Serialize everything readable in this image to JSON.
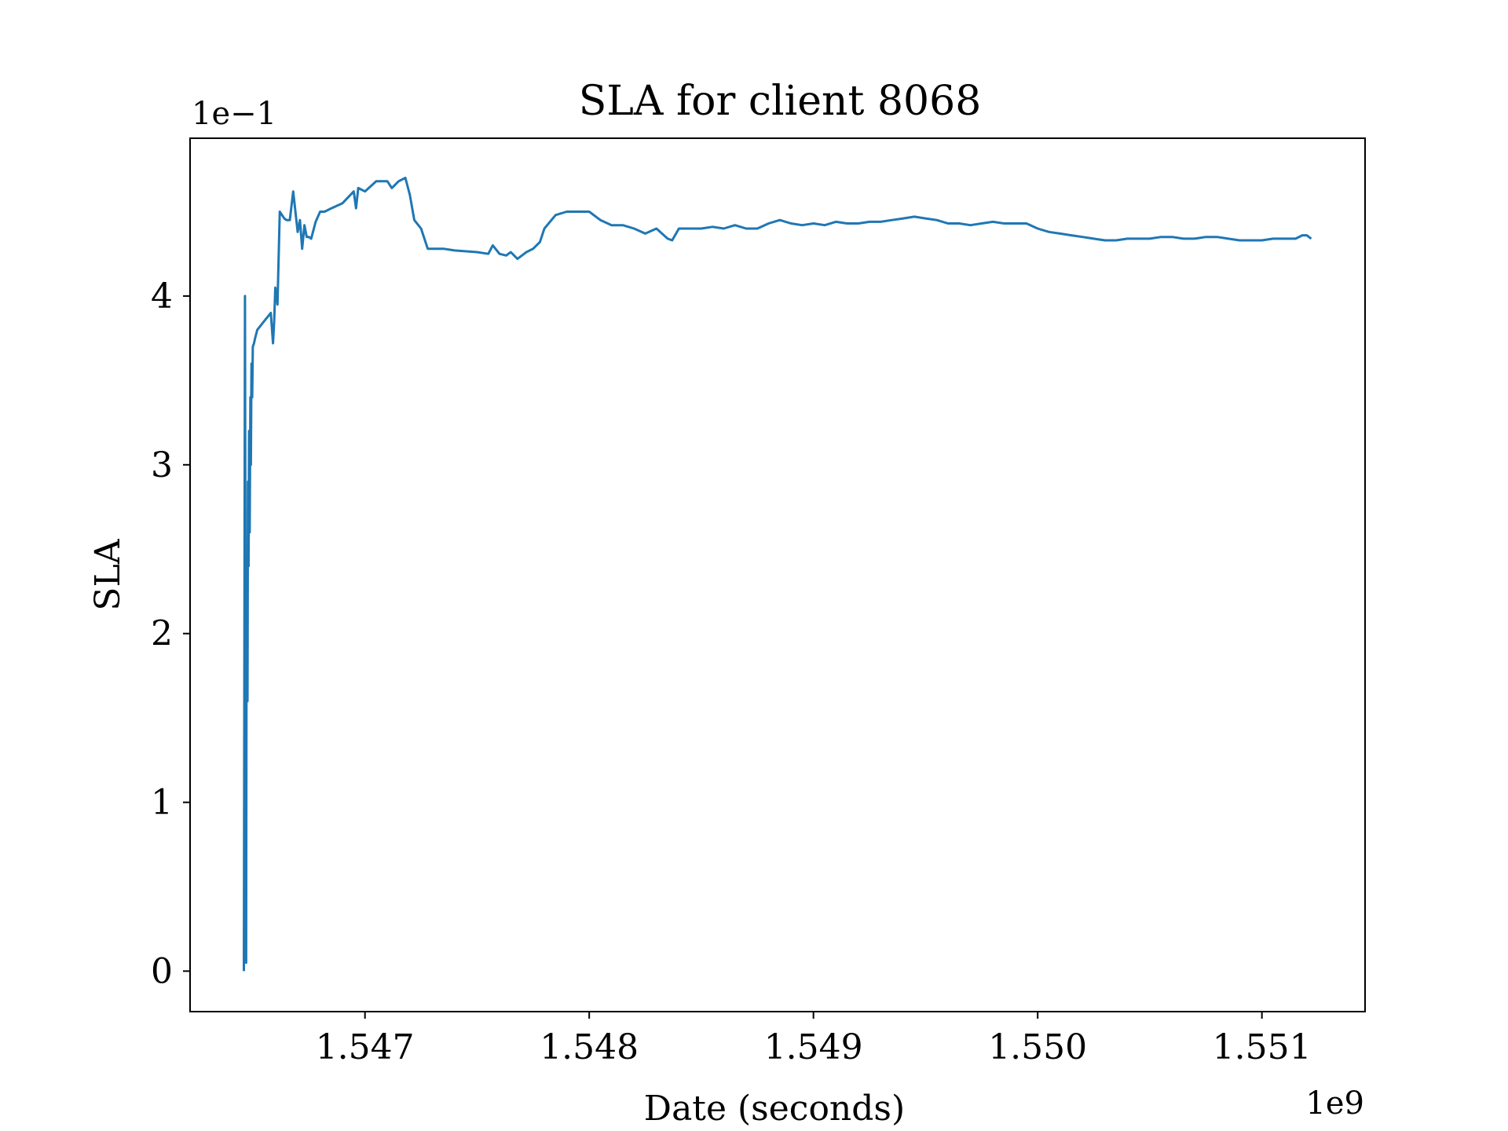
{
  "colors": {
    "line": "#1f77b4",
    "axes": "#000000",
    "background": "#ffffff"
  },
  "chart_data": {
    "type": "line",
    "title": "SLA for client 8068",
    "xlabel": "Date (seconds)",
    "ylabel": "SLA",
    "x_offset_label": "1e9",
    "y_offset_label": "1e−1",
    "xlim": [
      1546220000,
      1551460000
    ],
    "ylim": [
      -0.024,
      0.4935
    ],
    "x_ticks": [
      1547000000,
      1548000000,
      1549000000,
      1550000000,
      1551000000
    ],
    "x_tick_labels": [
      "1.547",
      "1.548",
      "1.549",
      "1.550",
      "1.551"
    ],
    "y_ticks": [
      0,
      0.1,
      0.2,
      0.3,
      0.4
    ],
    "y_tick_labels": [
      "0",
      "1",
      "2",
      "3",
      "4"
    ],
    "grid": false,
    "legend": "none",
    "series": [
      {
        "x": [
          1546460000,
          1546465000,
          1546470000,
          1546472000,
          1546476000,
          1546478000,
          1546481000,
          1546483000,
          1546486000,
          1546489000,
          1546491000,
          1546494000,
          1546497000,
          1546500000,
          1546505000,
          1546510000,
          1546520000,
          1546550000,
          1546580000,
          1546590000,
          1546595000,
          1546600000,
          1546610000,
          1546620000,
          1546630000,
          1546640000,
          1546650000,
          1546665000,
          1546680000,
          1546700000,
          1546710000,
          1546720000,
          1546730000,
          1546740000,
          1546750000,
          1546760000,
          1546780000,
          1546800000,
          1546820000,
          1546850000,
          1546900000,
          1546950000,
          1546960000,
          1546970000,
          1547000000,
          1547050000,
          1547100000,
          1547120000,
          1547150000,
          1547180000,
          1547200000,
          1547220000,
          1547250000,
          1547280000,
          1547350000,
          1547400000,
          1547500000,
          1547550000,
          1547570000,
          1547600000,
          1547630000,
          1547650000,
          1547680000,
          1547700000,
          1547720000,
          1547750000,
          1547780000,
          1547800000,
          1547850000,
          1547900000,
          1547950000,
          1548000000,
          1548050000,
          1548100000,
          1548120000,
          1548150000,
          1548200000,
          1548250000,
          1548300000,
          1548350000,
          1548370000,
          1548400000,
          1548450000,
          1548500000,
          1548550000,
          1548600000,
          1548650000,
          1548700000,
          1548750000,
          1548800000,
          1548850000,
          1548900000,
          1548950000,
          1549000000,
          1549050000,
          1549100000,
          1549150000,
          1549200000,
          1549250000,
          1549300000,
          1549350000,
          1549400000,
          1549450000,
          1549500000,
          1549550000,
          1549600000,
          1549650000,
          1549700000,
          1549750000,
          1549800000,
          1549850000,
          1549900000,
          1549950000,
          1550000000,
          1550050000,
          1550100000,
          1550150000,
          1550200000,
          1550250000,
          1550300000,
          1550350000,
          1550400000,
          1550450000,
          1550500000,
          1550550000,
          1550600000,
          1550650000,
          1550700000,
          1550750000,
          1550800000,
          1550850000,
          1550900000,
          1550950000,
          1551000000,
          1551050000,
          1551100000,
          1551150000,
          1551180000,
          1551200000,
          1551220000
        ],
        "y": [
          0.0,
          0.4,
          0.005,
          0.2,
          0.16,
          0.29,
          0.24,
          0.32,
          0.26,
          0.34,
          0.3,
          0.36,
          0.34,
          0.37,
          0.372,
          0.375,
          0.38,
          0.385,
          0.39,
          0.372,
          0.385,
          0.405,
          0.395,
          0.45,
          0.448,
          0.446,
          0.445,
          0.445,
          0.462,
          0.438,
          0.445,
          0.428,
          0.442,
          0.435,
          0.435,
          0.434,
          0.444,
          0.45,
          0.45,
          0.452,
          0.455,
          0.462,
          0.452,
          0.464,
          0.462,
          0.468,
          0.468,
          0.464,
          0.468,
          0.47,
          0.46,
          0.445,
          0.44,
          0.428,
          0.428,
          0.427,
          0.426,
          0.425,
          0.43,
          0.425,
          0.424,
          0.426,
          0.422,
          0.424,
          0.426,
          0.428,
          0.432,
          0.44,
          0.448,
          0.45,
          0.45,
          0.45,
          0.445,
          0.442,
          0.442,
          0.442,
          0.44,
          0.437,
          0.44,
          0.434,
          0.433,
          0.44,
          0.44,
          0.44,
          0.441,
          0.44,
          0.442,
          0.44,
          0.44,
          0.443,
          0.445,
          0.443,
          0.442,
          0.443,
          0.442,
          0.444,
          0.443,
          0.443,
          0.444,
          0.444,
          0.445,
          0.446,
          0.447,
          0.446,
          0.445,
          0.443,
          0.443,
          0.442,
          0.443,
          0.444,
          0.443,
          0.443,
          0.443,
          0.44,
          0.438,
          0.437,
          0.436,
          0.435,
          0.434,
          0.433,
          0.433,
          0.434,
          0.434,
          0.434,
          0.435,
          0.435,
          0.434,
          0.434,
          0.435,
          0.435,
          0.434,
          0.433,
          0.433,
          0.433,
          0.434,
          0.434,
          0.434,
          0.436,
          0.436,
          0.434
        ]
      }
    ]
  }
}
